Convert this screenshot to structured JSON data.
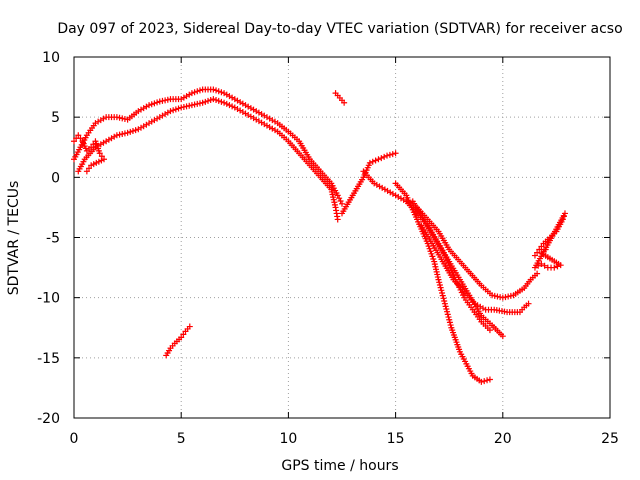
{
  "chart_data": {
    "type": "scatter",
    "title": "Day 097 of 2023, Sidereal Day-to-day VTEC variation (SDTVAR) for receiver acso",
    "xlabel": "GPS time / hours",
    "ylabel": "SDTVAR / TECUs",
    "xlim": [
      0,
      25
    ],
    "ylim": [
      -20,
      10
    ],
    "xticks": [
      "0",
      "5",
      "10",
      "15",
      "20",
      "25"
    ],
    "yticks": [
      "-20",
      "-15",
      "-10",
      "-5",
      "0",
      "5",
      "10"
    ],
    "xtick_values": [
      0,
      5,
      10,
      15,
      20,
      25
    ],
    "ytick_values": [
      -20,
      -15,
      -10,
      -5,
      0,
      5,
      10
    ],
    "grid": true,
    "marker": "+",
    "color": "#ff0000",
    "series": [
      {
        "name": "main-arc",
        "points": [
          [
            0,
            1.5
          ],
          [
            0.3,
            2.5
          ],
          [
            0.6,
            3.5
          ],
          [
            1,
            4.5
          ],
          [
            1.5,
            5
          ],
          [
            2,
            5
          ],
          [
            2.5,
            4.8
          ],
          [
            3,
            5.5
          ],
          [
            3.5,
            6
          ],
          [
            4,
            6.3
          ],
          [
            4.5,
            6.5
          ],
          [
            5,
            6.5
          ],
          [
            5.5,
            7
          ],
          [
            6,
            7.3
          ],
          [
            6.5,
            7.3
          ],
          [
            7,
            7
          ],
          [
            7.5,
            6.5
          ],
          [
            8,
            6
          ],
          [
            8.5,
            5.5
          ],
          [
            9,
            5
          ],
          [
            9.5,
            4.5
          ],
          [
            10,
            3.8
          ],
          [
            10.5,
            3
          ],
          [
            11,
            1.5
          ],
          [
            11.5,
            0.5
          ],
          [
            12,
            -0.5
          ],
          [
            12.3,
            -1.5
          ],
          [
            12.5,
            -2.2
          ]
        ]
      },
      {
        "name": "main-arc-lower",
        "points": [
          [
            0.2,
            0.5
          ],
          [
            0.5,
            1.5
          ],
          [
            1,
            2.5
          ],
          [
            1.5,
            3
          ],
          [
            2,
            3.5
          ],
          [
            2.5,
            3.7
          ],
          [
            3,
            4
          ],
          [
            3.5,
            4.5
          ],
          [
            4,
            5
          ],
          [
            4.5,
            5.5
          ],
          [
            5,
            5.8
          ],
          [
            5.5,
            6
          ],
          [
            6,
            6.2
          ],
          [
            6.5,
            6.5
          ],
          [
            7,
            6.2
          ],
          [
            7.5,
            5.8
          ],
          [
            8,
            5.3
          ],
          [
            8.5,
            4.8
          ],
          [
            9,
            4.3
          ],
          [
            9.5,
            3.8
          ],
          [
            10,
            3
          ],
          [
            10.5,
            2
          ],
          [
            11,
            1
          ],
          [
            11.5,
            0
          ],
          [
            12,
            -1
          ],
          [
            12.2,
            -2.5
          ],
          [
            12.3,
            -3.5
          ]
        ]
      },
      {
        "name": "left-cluster",
        "points": [
          [
            0,
            3
          ],
          [
            0.2,
            3.5
          ],
          [
            0.4,
            3
          ],
          [
            0.6,
            2.2
          ],
          [
            0.8,
            2.5
          ],
          [
            1,
            3
          ],
          [
            1.2,
            2
          ],
          [
            1.4,
            1.5
          ],
          [
            0.8,
            1
          ],
          [
            0.6,
            0.5
          ]
        ]
      },
      {
        "name": "isolated-high",
        "points": [
          [
            12.2,
            7
          ],
          [
            12.4,
            6.6
          ],
          [
            12.6,
            6.2
          ]
        ]
      },
      {
        "name": "isolated-low",
        "points": [
          [
            4.3,
            -14.8
          ],
          [
            4.5,
            -14.2
          ],
          [
            4.7,
            -13.8
          ],
          [
            5,
            -13.3
          ],
          [
            5.2,
            -12.8
          ],
          [
            5.4,
            -12.4
          ]
        ]
      },
      {
        "name": "rise-15",
        "points": [
          [
            12.5,
            -3
          ],
          [
            13,
            -1.5
          ],
          [
            13.5,
            0
          ],
          [
            13.8,
            1.2
          ],
          [
            14.2,
            1.5
          ],
          [
            14.6,
            1.8
          ],
          [
            15,
            2
          ]
        ]
      },
      {
        "name": "descent-a",
        "points": [
          [
            13.5,
            0.5
          ],
          [
            14,
            -0.5
          ],
          [
            14.5,
            -1
          ],
          [
            15,
            -1.5
          ],
          [
            15.5,
            -2
          ],
          [
            16,
            -3
          ],
          [
            16.5,
            -4
          ],
          [
            17,
            -5.5
          ],
          [
            17.5,
            -7
          ],
          [
            18,
            -8.5
          ],
          [
            18.5,
            -10
          ],
          [
            19,
            -11.5
          ],
          [
            19.5,
            -12.3
          ],
          [
            20,
            -13.2
          ]
        ]
      },
      {
        "name": "descent-b",
        "points": [
          [
            15,
            -0.5
          ],
          [
            15.5,
            -1.5
          ],
          [
            16,
            -3.5
          ],
          [
            16.5,
            -5.5
          ],
          [
            16.8,
            -7
          ],
          [
            17,
            -8.5
          ],
          [
            17.3,
            -10.5
          ],
          [
            17.6,
            -12.5
          ],
          [
            18,
            -14.5
          ],
          [
            18.3,
            -15.5
          ],
          [
            18.6,
            -16.5
          ],
          [
            19,
            -17
          ],
          [
            19.4,
            -16.8
          ]
        ]
      },
      {
        "name": "descent-c",
        "points": [
          [
            15.8,
            -2
          ],
          [
            16.3,
            -3.5
          ],
          [
            16.8,
            -5
          ],
          [
            17.3,
            -6.5
          ],
          [
            17.8,
            -8.5
          ],
          [
            18.2,
            -10
          ],
          [
            18.6,
            -11
          ],
          [
            19,
            -12
          ],
          [
            19.4,
            -12.7
          ]
        ]
      },
      {
        "name": "descent-d",
        "points": [
          [
            16,
            -2.5
          ],
          [
            16.5,
            -3.5
          ],
          [
            17,
            -4.5
          ],
          [
            17.5,
            -6
          ],
          [
            18,
            -7
          ],
          [
            18.5,
            -8
          ],
          [
            19,
            -9
          ],
          [
            19.5,
            -9.8
          ],
          [
            20,
            -10
          ],
          [
            20.5,
            -9.8
          ],
          [
            21,
            -9.2
          ],
          [
            21.3,
            -8.5
          ],
          [
            21.6,
            -8
          ]
        ]
      },
      {
        "name": "descent-e",
        "points": [
          [
            16.2,
            -4
          ],
          [
            16.7,
            -5.5
          ],
          [
            17.2,
            -7
          ],
          [
            17.7,
            -8.5
          ],
          [
            18.2,
            -9.5
          ],
          [
            18.7,
            -10.5
          ],
          [
            19.2,
            -11
          ],
          [
            19.6,
            -11
          ],
          [
            20.2,
            -11.2
          ],
          [
            20.8,
            -11.2
          ],
          [
            21,
            -10.8
          ],
          [
            21.2,
            -10.5
          ]
        ]
      },
      {
        "name": "right-cluster",
        "points": [
          [
            21.5,
            -6.5
          ],
          [
            21.7,
            -6
          ],
          [
            21.9,
            -5.5
          ],
          [
            22.2,
            -5
          ],
          [
            22.5,
            -4.5
          ],
          [
            22.8,
            -3.5
          ],
          [
            22.9,
            -3
          ],
          [
            21.5,
            -7.5
          ],
          [
            21.8,
            -7.2
          ],
          [
            22.1,
            -7.5
          ],
          [
            22.4,
            -7.5
          ],
          [
            22.7,
            -7.3
          ],
          [
            21.8,
            -6.3
          ],
          [
            22,
            -6
          ]
        ]
      }
    ]
  }
}
